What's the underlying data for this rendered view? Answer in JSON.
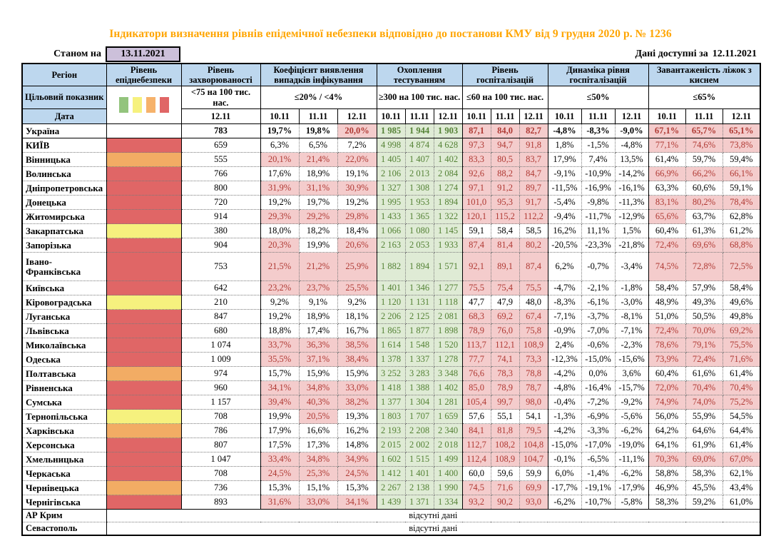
{
  "title": "Індикатори визначення рівнів епідемічної небезпеки відповідно до постанови КМУ від 9 грудня 2020 р. № 1236",
  "as_of": {
    "label": "Станом на",
    "date": "13.11.2021",
    "box_color": "#CCC0DA"
  },
  "available": {
    "label": "Дані доступні за",
    "date": "12.11.2021"
  },
  "header": {
    "region": "Регіон",
    "target": "Цільовий показник",
    "date": "Дата",
    "legend_colors": [
      "#93C47D",
      "#F6F17E",
      "#F6B26B",
      "#E06666"
    ],
    "level_colors": {
      "none": "#FFFFFF",
      "red": "#E06666",
      "orange": "#F2AC64",
      "yellow": "#F6F17E"
    },
    "highlight_colors": {
      "pink_bg": "#F4CCCC",
      "pink_text": "#B03A34",
      "green_bg": "#DFEBD5",
      "green_text": "#548235",
      "header_bg": "#BDD7EE",
      "title_color": "#FFA500"
    },
    "groups": [
      {
        "label": "Рівень епіднебезпеки",
        "target": "",
        "dates": []
      },
      {
        "label": "Рівень захворюваності",
        "target": "<75 на 100 тис. нас.",
        "dates": [
          "12.11"
        ]
      },
      {
        "label": "Коефіцієнт виявлення випадків інфікування",
        "target": "≤20% / <4%",
        "dates": [
          "10.11",
          "11.11",
          "12.11"
        ]
      },
      {
        "label": "Охоплення тестуванням",
        "target": "≥300 на 100 тис. нас.",
        "dates": [
          "10.11",
          "11.11",
          "12.11"
        ]
      },
      {
        "label": "Рівень госпіталізацій",
        "target": "≤60 на 100 тис. нас.",
        "dates": [
          "10.11",
          "11.11",
          "12.11"
        ]
      },
      {
        "label": "Динаміка рівня госпіталізацій",
        "target": "≤50%",
        "dates": [
          "10.11",
          "11.11",
          "12.11"
        ]
      },
      {
        "label": "Завантаженість ліжок з киснем",
        "target": "≤65%",
        "dates": [
          "10.11",
          "11.11",
          "12.11"
        ]
      }
    ]
  },
  "rows": [
    {
      "name": "Україна",
      "level": "none",
      "bold": true,
      "solid_b": true,
      "inc": "783",
      "det": [
        "19,7%",
        "19,8%",
        "20,0%"
      ],
      "test": [
        "1 985",
        "1 944",
        "1 903"
      ],
      "hosp": [
        "87,1",
        "84,0",
        "82,7"
      ],
      "dyn": [
        "-4,8%",
        "-8,3%",
        "-9,0%"
      ],
      "beds": [
        "67,1%",
        "65,7%",
        "65,1%"
      ]
    },
    {
      "name": "КИЇВ",
      "level": "red",
      "inc": "659",
      "det": [
        "6,3%",
        "6,5%",
        "7,2%"
      ],
      "test": [
        "4 998",
        "4 874",
        "4 628"
      ],
      "hosp": [
        "97,3",
        "94,7",
        "91,8"
      ],
      "dyn": [
        "1,8%",
        "-1,5%",
        "-4,8%"
      ],
      "beds": [
        "77,1%",
        "74,6%",
        "73,8%"
      ]
    },
    {
      "name": "Вінницька",
      "level": "orange",
      "inc": "555",
      "det": [
        "20,1%",
        "21,4%",
        "22,0%"
      ],
      "test": [
        "1 405",
        "1 407",
        "1 402"
      ],
      "hosp": [
        "83,3",
        "80,5",
        "83,7"
      ],
      "dyn": [
        "17,9%",
        "7,4%",
        "13,5%"
      ],
      "beds": [
        "61,4%",
        "59,7%",
        "59,4%"
      ]
    },
    {
      "name": "Волинська",
      "level": "red",
      "inc": "766",
      "det": [
        "17,6%",
        "18,9%",
        "19,1%"
      ],
      "test": [
        "2 106",
        "2 013",
        "2 084"
      ],
      "hosp": [
        "92,6",
        "88,2",
        "84,7"
      ],
      "dyn": [
        "-9,1%",
        "-10,9%",
        "-14,2%"
      ],
      "beds": [
        "66,9%",
        "66,2%",
        "66,1%"
      ]
    },
    {
      "name": "Дніпропетровська",
      "level": "red",
      "inc": "800",
      "det": [
        "31,9%",
        "31,1%",
        "30,9%"
      ],
      "test": [
        "1 327",
        "1 308",
        "1 274"
      ],
      "hosp": [
        "97,1",
        "91,2",
        "89,7"
      ],
      "dyn": [
        "-11,5%",
        "-16,9%",
        "-16,1%"
      ],
      "beds": [
        "63,3%",
        "60,6%",
        "59,1%"
      ]
    },
    {
      "name": "Донецька",
      "level": "red",
      "inc": "720",
      "det": [
        "19,2%",
        "19,7%",
        "19,2%"
      ],
      "test": [
        "1 995",
        "1 953",
        "1 894"
      ],
      "hosp": [
        "101,0",
        "95,3",
        "91,7"
      ],
      "dyn": [
        "-5,4%",
        "-9,8%",
        "-11,3%"
      ],
      "beds": [
        "83,1%",
        "80,2%",
        "78,4%"
      ]
    },
    {
      "name": "Житомирська",
      "level": "red",
      "inc": "914",
      "det": [
        "29,3%",
        "29,2%",
        "29,8%"
      ],
      "test": [
        "1 433",
        "1 365",
        "1 322"
      ],
      "hosp": [
        "120,1",
        "115,2",
        "112,2"
      ],
      "dyn": [
        "-9,4%",
        "-11,7%",
        "-12,9%"
      ],
      "beds": [
        "65,6%",
        "63,7%",
        "62,8%"
      ]
    },
    {
      "name": "Закарпатська",
      "level": "yellow",
      "inc": "380",
      "det": [
        "18,0%",
        "18,2%",
        "18,4%"
      ],
      "test": [
        "1 066",
        "1 080",
        "1 145"
      ],
      "hosp": [
        "59,1",
        "58,4",
        "58,5"
      ],
      "dyn": [
        "16,2%",
        "11,1%",
        "1,5%"
      ],
      "beds": [
        "60,4%",
        "61,3%",
        "61,2%"
      ]
    },
    {
      "name": "Запорізька",
      "level": "red",
      "inc": "904",
      "det": [
        "20,3%",
        "19,9%",
        "20,6%"
      ],
      "test": [
        "2 163",
        "2 053",
        "1 933"
      ],
      "hosp": [
        "87,4",
        "81,4",
        "80,2"
      ],
      "dyn": [
        "-20,5%",
        "-23,3%",
        "-21,8%"
      ],
      "beds": [
        "72,4%",
        "69,6%",
        "68,8%"
      ]
    },
    {
      "name": "Івано-Франківська",
      "level": "red",
      "tall": true,
      "inc": "753",
      "det": [
        "21,5%",
        "21,2%",
        "25,9%"
      ],
      "test": [
        "1 882",
        "1 894",
        "1 571"
      ],
      "hosp": [
        "92,1",
        "89,1",
        "87,4"
      ],
      "dyn": [
        "6,2%",
        "-0,7%",
        "-3,4%"
      ],
      "beds": [
        "74,5%",
        "72,8%",
        "72,5%"
      ]
    },
    {
      "name": "Київська",
      "level": "red",
      "inc": "642",
      "det": [
        "23,2%",
        "23,7%",
        "25,5%"
      ],
      "test": [
        "1 401",
        "1 346",
        "1 277"
      ],
      "hosp": [
        "75,5",
        "75,4",
        "75,5"
      ],
      "dyn": [
        "-4,7%",
        "-2,1%",
        "-1,8%"
      ],
      "beds": [
        "58,4%",
        "57,9%",
        "58,4%"
      ]
    },
    {
      "name": "Кіровоградська",
      "level": "yellow",
      "inc": "210",
      "det": [
        "9,2%",
        "9,1%",
        "9,2%"
      ],
      "test": [
        "1 120",
        "1 131",
        "1 118"
      ],
      "hosp": [
        "47,7",
        "47,9",
        "48,0"
      ],
      "dyn": [
        "-8,3%",
        "-6,1%",
        "-3,0%"
      ],
      "beds": [
        "48,9%",
        "49,3%",
        "49,6%"
      ]
    },
    {
      "name": "Луганська",
      "level": "red",
      "inc": "847",
      "det": [
        "19,2%",
        "18,9%",
        "18,1%"
      ],
      "test": [
        "2 206",
        "2 125",
        "2 081"
      ],
      "hosp": [
        "68,3",
        "69,2",
        "67,4"
      ],
      "dyn": [
        "-7,1%",
        "-3,7%",
        "-8,1%"
      ],
      "beds": [
        "51,0%",
        "50,5%",
        "49,8%"
      ]
    },
    {
      "name": "Львівська",
      "level": "red",
      "inc": "680",
      "det": [
        "18,8%",
        "17,4%",
        "16,7%"
      ],
      "test": [
        "1 865",
        "1 877",
        "1 898"
      ],
      "hosp": [
        "78,9",
        "76,0",
        "75,8"
      ],
      "dyn": [
        "-0,9%",
        "-7,0%",
        "-7,1%"
      ],
      "beds": [
        "72,4%",
        "70,0%",
        "69,2%"
      ]
    },
    {
      "name": "Миколаївська",
      "level": "red",
      "inc": "1 074",
      "det": [
        "33,7%",
        "36,3%",
        "38,5%"
      ],
      "test": [
        "1 614",
        "1 548",
        "1 520"
      ],
      "hosp": [
        "113,7",
        "112,1",
        "108,9"
      ],
      "dyn": [
        "2,4%",
        "-0,6%",
        "-2,3%"
      ],
      "beds": [
        "78,6%",
        "79,1%",
        "75,5%"
      ]
    },
    {
      "name": "Одеська",
      "level": "red",
      "inc": "1 009",
      "det": [
        "35,5%",
        "37,1%",
        "38,4%"
      ],
      "test": [
        "1 378",
        "1 337",
        "1 278"
      ],
      "hosp": [
        "77,7",
        "74,1",
        "73,3"
      ],
      "dyn": [
        "-12,3%",
        "-15,0%",
        "-15,6%"
      ],
      "beds": [
        "73,9%",
        "72,4%",
        "71,6%"
      ]
    },
    {
      "name": "Полтавська",
      "level": "orange",
      "inc": "974",
      "det": [
        "15,7%",
        "15,9%",
        "15,9%"
      ],
      "test": [
        "3 252",
        "3 283",
        "3 348"
      ],
      "hosp": [
        "76,6",
        "78,3",
        "78,8"
      ],
      "dyn": [
        "-4,2%",
        "0,0%",
        "3,6%"
      ],
      "beds": [
        "60,4%",
        "61,6%",
        "61,4%"
      ]
    },
    {
      "name": "Рівненська",
      "level": "red",
      "inc": "960",
      "det": [
        "34,1%",
        "34,8%",
        "33,0%"
      ],
      "test": [
        "1 418",
        "1 388",
        "1 402"
      ],
      "hosp": [
        "85,0",
        "78,9",
        "78,7"
      ],
      "dyn": [
        "-4,8%",
        "-16,4%",
        "-15,7%"
      ],
      "beds": [
        "72,0%",
        "70,4%",
        "70,4%"
      ]
    },
    {
      "name": "Сумська",
      "level": "red",
      "inc": "1 157",
      "det": [
        "39,4%",
        "40,3%",
        "38,2%"
      ],
      "test": [
        "1 377",
        "1 304",
        "1 281"
      ],
      "hosp": [
        "105,4",
        "99,7",
        "98,0"
      ],
      "dyn": [
        "-0,4%",
        "-7,2%",
        "-9,2%"
      ],
      "beds": [
        "74,9%",
        "74,0%",
        "75,2%"
      ]
    },
    {
      "name": "Тернопільська",
      "level": "yellow",
      "inc": "708",
      "det": [
        "19,9%",
        "20,5%",
        "19,3%"
      ],
      "test": [
        "1 803",
        "1 707",
        "1 659"
      ],
      "hosp": [
        "57,6",
        "55,1",
        "54,1"
      ],
      "dyn": [
        "-1,3%",
        "-6,9%",
        "-5,6%"
      ],
      "beds": [
        "56,0%",
        "55,9%",
        "54,5%"
      ]
    },
    {
      "name": "Харківська",
      "level": "orange",
      "inc": "786",
      "det": [
        "17,9%",
        "16,6%",
        "16,2%"
      ],
      "test": [
        "2 193",
        "2 208",
        "2 340"
      ],
      "hosp": [
        "84,1",
        "81,8",
        "79,5"
      ],
      "dyn": [
        "-4,2%",
        "-3,3%",
        "-6,2%"
      ],
      "beds": [
        "64,2%",
        "64,6%",
        "64,4%"
      ]
    },
    {
      "name": "Херсонська",
      "level": "red",
      "inc": "807",
      "det": [
        "17,5%",
        "17,3%",
        "14,8%"
      ],
      "test": [
        "2 015",
        "2 002",
        "2 018"
      ],
      "hosp": [
        "112,7",
        "108,2",
        "104,8"
      ],
      "dyn": [
        "-15,0%",
        "-17,0%",
        "-19,0%"
      ],
      "beds": [
        "64,1%",
        "61,9%",
        "61,4%"
      ]
    },
    {
      "name": "Хмельницька",
      "level": "red",
      "inc": "1 047",
      "det": [
        "33,4%",
        "34,8%",
        "34,9%"
      ],
      "test": [
        "1 602",
        "1 515",
        "1 499"
      ],
      "hosp": [
        "112,4",
        "108,9",
        "104,7"
      ],
      "dyn": [
        "-0,1%",
        "-6,5%",
        "-11,1%"
      ],
      "beds": [
        "70,3%",
        "69,0%",
        "67,0%"
      ]
    },
    {
      "name": "Черкаська",
      "level": "red",
      "inc": "708",
      "det": [
        "24,5%",
        "25,3%",
        "24,5%"
      ],
      "test": [
        "1 412",
        "1 401",
        "1 400"
      ],
      "hosp": [
        "60,0",
        "59,6",
        "59,9"
      ],
      "dyn": [
        "6,0%",
        "-1,4%",
        "-6,2%"
      ],
      "beds": [
        "58,8%",
        "58,3%",
        "62,1%"
      ]
    },
    {
      "name": "Чернівецька",
      "level": "orange",
      "inc": "736",
      "det": [
        "15,3%",
        "15,1%",
        "15,3%"
      ],
      "test": [
        "2 267",
        "2 138",
        "1 990"
      ],
      "hosp": [
        "74,5",
        "71,6",
        "69,9"
      ],
      "dyn": [
        "-17,7%",
        "-19,1%",
        "-17,9%"
      ],
      "beds": [
        "46,9%",
        "45,5%",
        "43,4%"
      ]
    },
    {
      "name": "Чернігівська",
      "level": "red",
      "solid_b": true,
      "inc": "893",
      "det": [
        "31,6%",
        "33,0%",
        "34,1%"
      ],
      "test": [
        "1 439",
        "1 371",
        "1 334"
      ],
      "hosp": [
        "93,2",
        "90,2",
        "93,0"
      ],
      "dyn": [
        "-6,2%",
        "-10,7%",
        "-5,8%"
      ],
      "beds": [
        "58,3%",
        "59,2%",
        "61,0%"
      ]
    }
  ],
  "no_data_rows": [
    {
      "region": "АР Крим",
      "text": "відсутні дані"
    },
    {
      "region": "Севастополь",
      "text": "відсутні дані"
    }
  ],
  "thresholds": {
    "detection_pink_at_or_above": 20,
    "hospital_pink_above": 60,
    "beds_pink_above": 65
  }
}
